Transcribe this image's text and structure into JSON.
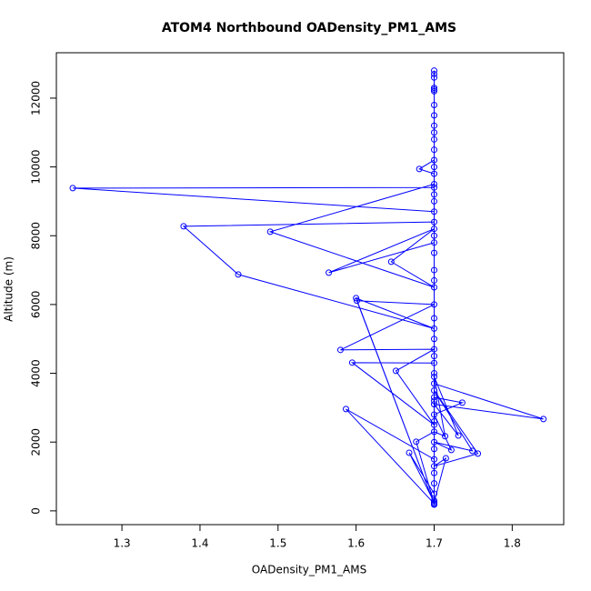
{
  "chart_data": {
    "type": "line",
    "title": "ATOM4 Northbound OADensity_PM1_AMS",
    "x_label": "OADensity_PM1_AMS",
    "y_label": "Altitude (m)",
    "color": "#0000ff",
    "markers": true,
    "x": [
      1.7,
      1.7,
      1.668,
      1.7,
      1.715,
      1.7,
      1.756,
      1.7,
      1.749,
      1.7,
      1.722,
      1.7,
      1.736,
      1.7,
      1.7,
      1.84,
      1.7,
      1.731,
      1.7,
      1.714,
      1.7,
      1.677,
      1.7,
      1.587,
      1.7,
      1.7,
      1.595,
      1.7,
      1.651,
      1.7,
      1.58,
      1.7,
      1.601,
      1.7,
      1.6,
      1.7,
      1.449,
      1.379,
      1.7,
      1.7,
      1.565,
      1.7,
      1.645,
      1.7,
      1.49,
      1.7,
      1.7,
      1.681,
      1.7,
      1.7,
      1.237,
      1.7,
      1.7,
      1.7,
      1.7,
      1.7,
      1.7,
      1.7,
      1.7,
      1.7,
      1.7,
      1.7,
      1.7,
      1.7,
      1.7,
      1.7,
      1.7,
      1.7,
      1.7,
      1.7,
      1.7,
      1.7,
      1.7,
      1.7,
      1.7,
      1.7,
      1.7,
      1.7,
      1.7,
      1.7,
      1.7
    ],
    "values": [
      180,
      500,
      1690,
      250,
      1530,
      1300,
      1665,
      3500,
      1745,
      2000,
      1770,
      2800,
      3146,
      3300,
      3700,
      2670,
      3100,
      2190,
      3900,
      2170,
      2300,
      2010,
      210,
      2960,
      1500,
      4300,
      4310,
      2500,
      4070,
      4700,
      4680,
      6000,
      6110,
      200,
      6185,
      5300,
      6873,
      8274,
      8400,
      7800,
      6926,
      8200,
      7243,
      6500,
      8115,
      9500,
      9800,
      9939,
      10200,
      8700,
      9384,
      9400,
      10500,
      11000,
      11500,
      12200,
      12300,
      12600,
      12800,
      12700,
      12250,
      11800,
      11200,
      10800,
      10000,
      9200,
      9000,
      8000,
      7500,
      7000,
      6700,
      5600,
      5000,
      4500,
      4000,
      3200,
      2600,
      1800,
      1100,
      800,
      300
    ],
    "xlim": [
      1.216,
      1.866
    ],
    "ylim": [
      -400,
      13320
    ],
    "xticks": [
      1.3,
      1.4,
      1.5,
      1.6,
      1.7,
      1.8
    ],
    "yticks": [
      0,
      2000,
      4000,
      6000,
      8000,
      10000,
      12000
    ]
  }
}
